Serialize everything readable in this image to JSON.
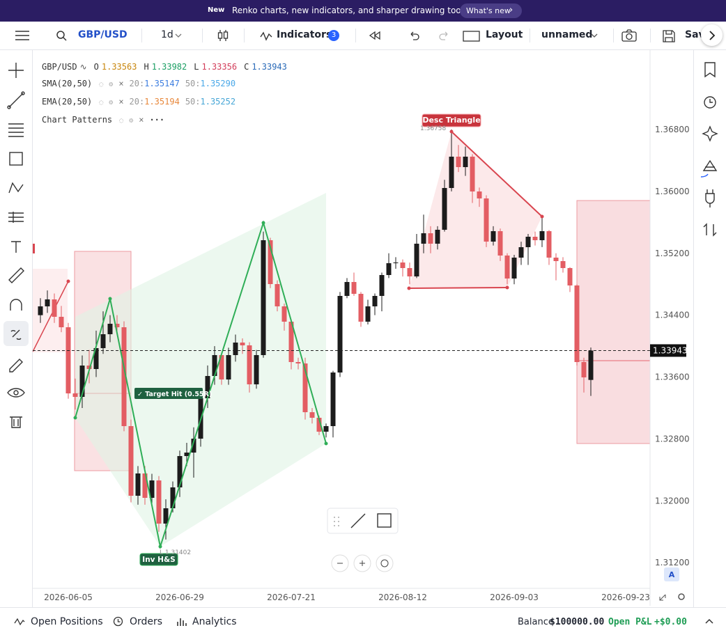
{
  "banner": {
    "badge": "New",
    "message": "Renko charts, new indicators, and sharper drawing tools",
    "button": "What's new"
  },
  "toolbar": {
    "symbol": "GBP/USD",
    "interval": "1d",
    "indicators": "Indicators",
    "indicator_count": "3",
    "layout": "Layout",
    "layout_name": "unnamed",
    "save": "Sav"
  },
  "legend": {
    "symbol": "GBP/USD",
    "ohlc": [
      {
        "label": "O",
        "value": "1.33563"
      },
      {
        "label": "H",
        "value": "1.33982"
      },
      {
        "label": "L",
        "value": "1.33356"
      },
      {
        "label": "C",
        "value": "1.33943"
      }
    ],
    "indicators": [
      {
        "name": "SMA(20,50)",
        "close": "×",
        "p1": "20:",
        "v1": "1.35147",
        "p2": "50:",
        "v2": "1.35290"
      },
      {
        "name": "EMA(20,50)",
        "close": "×",
        "p1": "20:",
        "v1": "1.35194",
        "p2": "50:",
        "v2": "1.35252"
      },
      {
        "name": "Chart Patterns",
        "close": "×",
        "more": "···"
      }
    ]
  },
  "annotations": {
    "desc_triangle": "Desc Triangle",
    "desc_price": "1.36758",
    "target": "✓ Target Hit (0.55R)",
    "inv_hs": "Inv H&S",
    "inv_price": "L 1.31402",
    "scale_mode": "A"
  },
  "bottom_bar": {
    "positions": "Open Positions",
    "orders": "Orders",
    "analytics": "Analytics",
    "balance_label": "Balance",
    "balance": "$100000.00",
    "pnl_label": "Open P&L",
    "pnl": "+$0.00"
  },
  "chart_data": {
    "type": "candlestick",
    "up_color": "#1c1c1c",
    "down_color": "#e35d63",
    "grid": true,
    "xlim": [
      -1.1,
      87.5
    ],
    "xticks": [
      {
        "value": 4,
        "label": "2026-06-05"
      },
      {
        "value": 20,
        "label": "2026-06-29"
      },
      {
        "value": 36,
        "label": "2026-07-21"
      },
      {
        "value": 52,
        "label": "2026-08-12"
      },
      {
        "value": 68,
        "label": "2026-09-03"
      },
      {
        "value": 84,
        "label": "2026-09-23"
      }
    ],
    "ylim": [
      1.30869,
      1.37826
    ],
    "yticks": [
      {
        "value": 1.312,
        "label": "1.31200"
      },
      {
        "value": 1.32,
        "label": "1.32000"
      },
      {
        "value": 1.328,
        "label": "1.32800"
      },
      {
        "value": 1.336,
        "label": "1.33600"
      },
      {
        "value": 1.344,
        "label": "1.34400"
      },
      {
        "value": 1.352,
        "label": "1.35200"
      },
      {
        "value": 1.36,
        "label": "1.36000"
      },
      {
        "value": 1.368,
        "label": "1.36800"
      }
    ],
    "open": [
      1.344,
      1.34514,
      1.34604,
      1.34379,
      1.34244,
      1.33389,
      1.33344,
      1.33749,
      1.33704,
      1.33974,
      1.34154,
      1.34289,
      1.34244,
      1.32966,
      1.32066,
      1.32354,
      1.32039,
      1.32264,
      1.31706,
      1.31904,
      1.32174,
      1.32579,
      1.32624,
      1.32804,
      1.33326,
      1.33614,
      1.33884,
      1.33569,
      1.33884,
      1.34046,
      1.3401,
      1.33506,
      1.33884,
      1.35369,
      1.34802,
      1.34514,
      1.34316,
      1.33794,
      1.33776,
      1.33146,
      1.33074,
      1.32894,
      1.32966,
      1.33659,
      1.34649,
      1.34829,
      1.34676,
      1.34316,
      1.34514,
      1.34649,
      1.34919,
      1.35072,
      1.35081,
      1.35009,
      1.34901,
      1.35324,
      1.35459,
      1.35324,
      1.35504,
      1.36044,
      1.36449,
      1.36314,
      1.36449,
      1.35999,
      1.35909,
      1.35351,
      1.35486,
      1.35171,
      1.34874,
      1.35144,
      1.35279,
      1.35414,
      1.35369,
      1.35486,
      1.35144,
      1.35099,
      1.35009,
      1.34784,
      1.33794,
      1.33563
    ],
    "high": [
      1.3462,
      1.3472,
      1.3468,
      1.3452,
      1.343,
      1.3358,
      1.3388,
      1.3395,
      1.342,
      1.3445,
      1.344,
      1.344,
      1.3432,
      1.3305,
      1.3245,
      1.3245,
      1.3235,
      1.3232,
      1.3202,
      1.3225,
      1.3265,
      1.3275,
      1.3295,
      1.3345,
      1.3375,
      1.34,
      1.3392,
      1.3398,
      1.3415,
      1.341,
      1.3405,
      1.3395,
      1.3548,
      1.354,
      1.3485,
      1.3455,
      1.3435,
      1.3385,
      1.3385,
      1.332,
      1.331,
      1.33,
      1.3368,
      1.347,
      1.3488,
      1.3495,
      1.347,
      1.346,
      1.3468,
      1.3495,
      1.352,
      1.3515,
      1.3512,
      1.3508,
      1.3545,
      1.357,
      1.3555,
      1.3555,
      1.3615,
      1.368,
      1.366,
      1.3658,
      1.3648,
      1.3605,
      1.3595,
      1.3555,
      1.3552,
      1.352,
      1.3518,
      1.3535,
      1.3545,
      1.3548,
      1.3568,
      1.355,
      1.352,
      1.3515,
      1.3502,
      1.348,
      1.3385,
      1.33982
    ],
    "low": [
      1.343,
      1.3443,
      1.343,
      1.3418,
      1.3332,
      1.3318,
      1.332,
      1.3352,
      1.336,
      1.339,
      1.3405,
      1.3415,
      1.329,
      1.3198,
      1.3195,
      1.3195,
      1.3195,
      1.316,
      1.315,
      1.3185,
      1.3205,
      1.3245,
      1.323,
      1.327,
      1.332,
      1.335,
      1.335,
      1.335,
      1.338,
      1.339,
      1.334,
      1.3345,
      1.3385,
      1.3475,
      1.3445,
      1.342,
      1.337,
      1.337,
      1.3305,
      1.33,
      1.3285,
      1.3282,
      1.3282,
      1.336,
      1.3462,
      1.3465,
      1.3425,
      1.3428,
      1.344,
      1.3445,
      1.3488,
      1.35,
      1.349,
      1.348,
      1.3488,
      1.352,
      1.352,
      1.3525,
      1.3548,
      1.36,
      1.3625,
      1.362,
      1.3585,
      1.358,
      1.3528,
      1.353,
      1.351,
      1.348,
      1.348,
      1.3505,
      1.3505,
      1.353,
      1.3528,
      1.3505,
      1.3485,
      1.3495,
      1.347,
      1.3375,
      1.334,
      1.33356
    ],
    "close": [
      1.34514,
      1.34604,
      1.34379,
      1.34244,
      1.33389,
      1.33344,
      1.33749,
      1.33704,
      1.33974,
      1.34154,
      1.34289,
      1.34244,
      1.32966,
      1.32066,
      1.32354,
      1.32039,
      1.32264,
      1.31706,
      1.31904,
      1.32174,
      1.32579,
      1.32624,
      1.32804,
      1.33326,
      1.33614,
      1.33884,
      1.33569,
      1.33884,
      1.34046,
      1.3401,
      1.33506,
      1.33884,
      1.35369,
      1.34802,
      1.34514,
      1.34316,
      1.33794,
      1.33776,
      1.33146,
      1.33074,
      1.32894,
      1.32966,
      1.33659,
      1.34649,
      1.34829,
      1.34676,
      1.34316,
      1.34514,
      1.34649,
      1.34919,
      1.35072,
      1.35081,
      1.35009,
      1.34901,
      1.35324,
      1.35459,
      1.35324,
      1.35504,
      1.36044,
      1.36449,
      1.36314,
      1.36449,
      1.35999,
      1.35909,
      1.35351,
      1.35486,
      1.35171,
      1.34874,
      1.35144,
      1.35279,
      1.35414,
      1.35369,
      1.35486,
      1.35144,
      1.35099,
      1.35009,
      1.34784,
      1.33794,
      1.33596,
      1.33943
    ]
  }
}
